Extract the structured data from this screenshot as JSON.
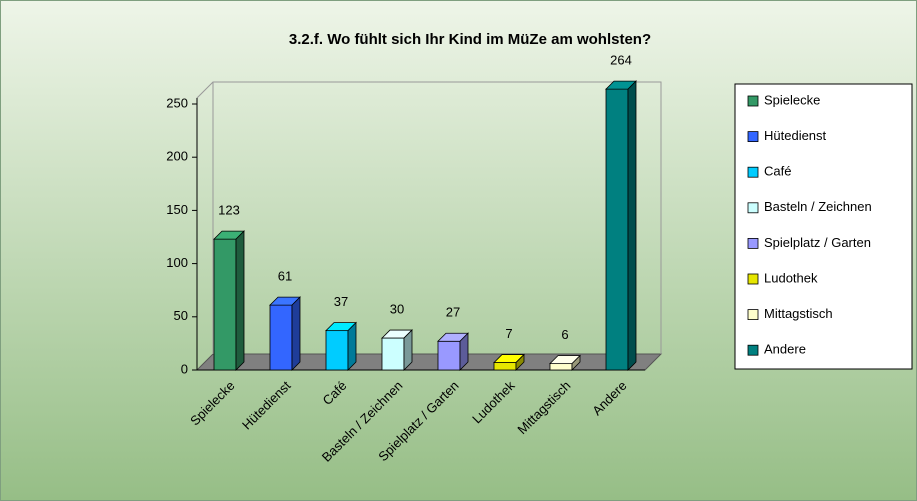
{
  "chart_data": {
    "type": "bar3d",
    "title": "3.2.f. Wo fühlt sich Ihr Kind im MüZe am wohlsten?",
    "categories": [
      "Spielecke",
      "Hütedienst",
      "Café",
      "Basteln / Zeichnen",
      "Spielplatz / Garten",
      "Ludothek",
      "Mittagstisch",
      "Andere"
    ],
    "values": [
      123,
      61,
      37,
      30,
      27,
      7,
      6,
      264
    ],
    "colors": [
      "#339966",
      "#3366ff",
      "#00ccff",
      "#ccffff",
      "#9999ff",
      "#e6e600",
      "#ffffcc",
      "#008080"
    ],
    "ylim": [
      0,
      250
    ],
    "yticks": [
      0,
      50,
      100,
      150,
      200,
      250
    ],
    "legend": "right"
  }
}
